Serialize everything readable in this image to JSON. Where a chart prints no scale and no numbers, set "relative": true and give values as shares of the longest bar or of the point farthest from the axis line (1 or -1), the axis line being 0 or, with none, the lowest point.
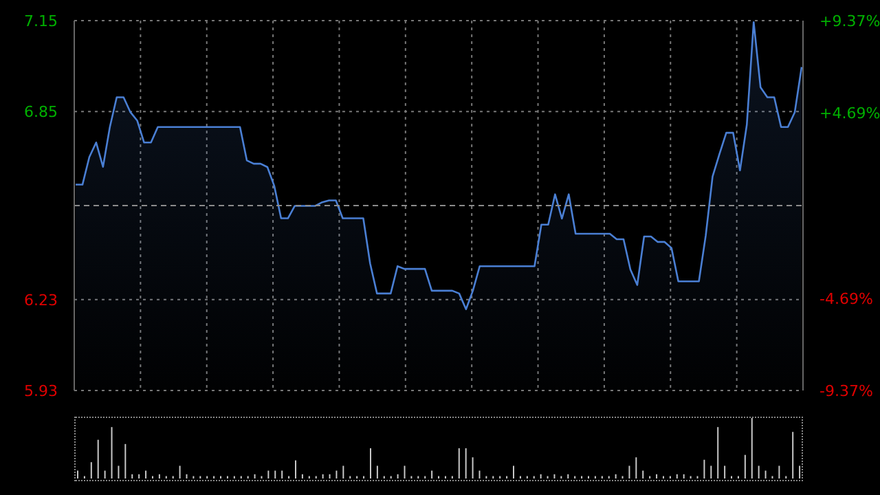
{
  "chart_data": [
    {
      "type": "area",
      "color": "#4a7fd4",
      "categories": [
        null,
        null,
        null,
        null,
        null,
        null,
        null,
        null,
        null,
        null,
        null,
        null,
        null,
        null,
        null,
        null,
        null,
        null,
        null,
        null,
        null,
        null,
        null,
        null,
        null,
        null,
        null,
        null,
        null,
        null,
        null,
        null,
        null,
        null,
        null,
        null,
        null,
        null,
        null,
        null,
        null,
        null,
        null,
        null,
        null,
        null,
        null,
        null,
        null,
        null,
        null,
        null,
        null,
        null,
        null,
        null,
        null,
        null,
        null,
        null,
        null,
        null,
        null,
        null,
        null,
        null,
        null,
        null,
        null,
        null,
        null,
        null,
        null,
        null,
        null,
        null,
        null,
        null,
        null,
        null,
        null,
        null,
        null,
        null,
        null,
        null,
        null,
        null,
        null,
        null,
        null,
        null,
        null,
        null,
        null,
        null,
        null,
        null,
        null,
        null,
        null,
        null,
        null,
        null,
        null,
        null,
        null
      ],
      "values": [
        6.609,
        6.609,
        6.7,
        6.748,
        6.668,
        6.799,
        6.897,
        6.897,
        6.848,
        6.82,
        6.748,
        6.748,
        6.799,
        6.799,
        6.799,
        6.799,
        6.799,
        6.799,
        6.799,
        6.799,
        6.799,
        6.799,
        6.799,
        6.799,
        6.799,
        6.689,
        6.678,
        6.678,
        6.667,
        6.605,
        6.498,
        6.498,
        6.539,
        6.539,
        6.539,
        6.539,
        6.551,
        6.557,
        6.557,
        6.498,
        6.498,
        6.498,
        6.498,
        6.349,
        6.25,
        6.25,
        6.25,
        6.34,
        6.331,
        6.331,
        6.331,
        6.331,
        6.259,
        6.259,
        6.259,
        6.259,
        6.25,
        6.198,
        6.259,
        6.34,
        6.34,
        6.34,
        6.34,
        6.34,
        6.34,
        6.34,
        6.34,
        6.34,
        6.477,
        6.477,
        6.577,
        6.497,
        6.577,
        6.447,
        6.447,
        6.447,
        6.447,
        6.447,
        6.447,
        6.429,
        6.429,
        6.329,
        6.278,
        6.438,
        6.438,
        6.42,
        6.42,
        6.4,
        6.29,
        6.29,
        6.29,
        6.29,
        6.441,
        6.636,
        6.71,
        6.78,
        6.78,
        6.656,
        6.807,
        7.145,
        6.93,
        6.897,
        6.897,
        6.799,
        6.799,
        6.848,
        6.997
      ],
      "ylim": [
        5.93,
        7.15
      ],
      "yticks": [
        5.93,
        6.23,
        6.85,
        7.15
      ],
      "y2lim": [
        -9.37,
        9.37
      ],
      "y2ticks": [
        {
          "value": -9.37,
          "label": "-9.37%"
        },
        {
          "value": -4.69,
          "label": "-4.69%"
        },
        {
          "value": 4.69,
          "label": "+4.69%"
        },
        {
          "value": 9.37,
          "label": "+9.37%"
        }
      ],
      "ref_lines": [
        {
          "axis": "y",
          "value": 6.54,
          "line_style": "dashed",
          "color": "#8c8c8c"
        }
      ],
      "grid": true,
      "line_style": "solid",
      "marker": "none",
      "legend": false
    },
    {
      "type": "bar",
      "relative": true,
      "color": "#c8c8c8",
      "categories": [
        null,
        null,
        null,
        null,
        null,
        null,
        null,
        null,
        null,
        null,
        null,
        null,
        null,
        null,
        null,
        null,
        null,
        null,
        null,
        null,
        null,
        null,
        null,
        null,
        null,
        null,
        null,
        null,
        null,
        null,
        null,
        null,
        null,
        null,
        null,
        null,
        null,
        null,
        null,
        null,
        null,
        null,
        null,
        null,
        null,
        null,
        null,
        null,
        null,
        null,
        null,
        null,
        null,
        null,
        null,
        null,
        null,
        null,
        null,
        null,
        null,
        null,
        null,
        null,
        null,
        null,
        null,
        null,
        null,
        null,
        null,
        null,
        null,
        null,
        null,
        null,
        null,
        null,
        null,
        null,
        null,
        null,
        null,
        null,
        null,
        null,
        null,
        null,
        null,
        null,
        null,
        null,
        null,
        null,
        null,
        null,
        null,
        null,
        null,
        null,
        null,
        null,
        null,
        null,
        null,
        null,
        null
      ],
      "values": [
        0.13,
        0.04,
        0.27,
        0.64,
        0.13,
        0.85,
        0.21,
        0.57,
        0.07,
        0.07,
        0.13,
        0.04,
        0.07,
        0.04,
        0.04,
        0.21,
        0.07,
        0.04,
        0.04,
        0.04,
        0.04,
        0.04,
        0.04,
        0.04,
        0.04,
        0.04,
        0.07,
        0.04,
        0.13,
        0.13,
        0.13,
        0.04,
        0.3,
        0.07,
        0.04,
        0.04,
        0.07,
        0.07,
        0.13,
        0.21,
        0.04,
        0.04,
        0.04,
        0.5,
        0.21,
        0.04,
        0.04,
        0.07,
        0.21,
        0.04,
        0.04,
        0.04,
        0.13,
        0.04,
        0.04,
        0.04,
        0.5,
        0.5,
        0.35,
        0.13,
        0.04,
        0.04,
        0.04,
        0.04,
        0.21,
        0.04,
        0.04,
        0.04,
        0.07,
        0.04,
        0.07,
        0.04,
        0.07,
        0.04,
        0.04,
        0.04,
        0.04,
        0.04,
        0.04,
        0.07,
        0.04,
        0.21,
        0.35,
        0.13,
        0.04,
        0.07,
        0.04,
        0.04,
        0.07,
        0.07,
        0.04,
        0.04,
        0.31,
        0.21,
        0.85,
        0.21,
        0.04,
        0.04,
        0.39,
        1,
        0.21,
        0.13,
        0.04,
        0.21,
        0.04,
        0.77,
        0.21
      ],
      "legend": false
    }
  ]
}
